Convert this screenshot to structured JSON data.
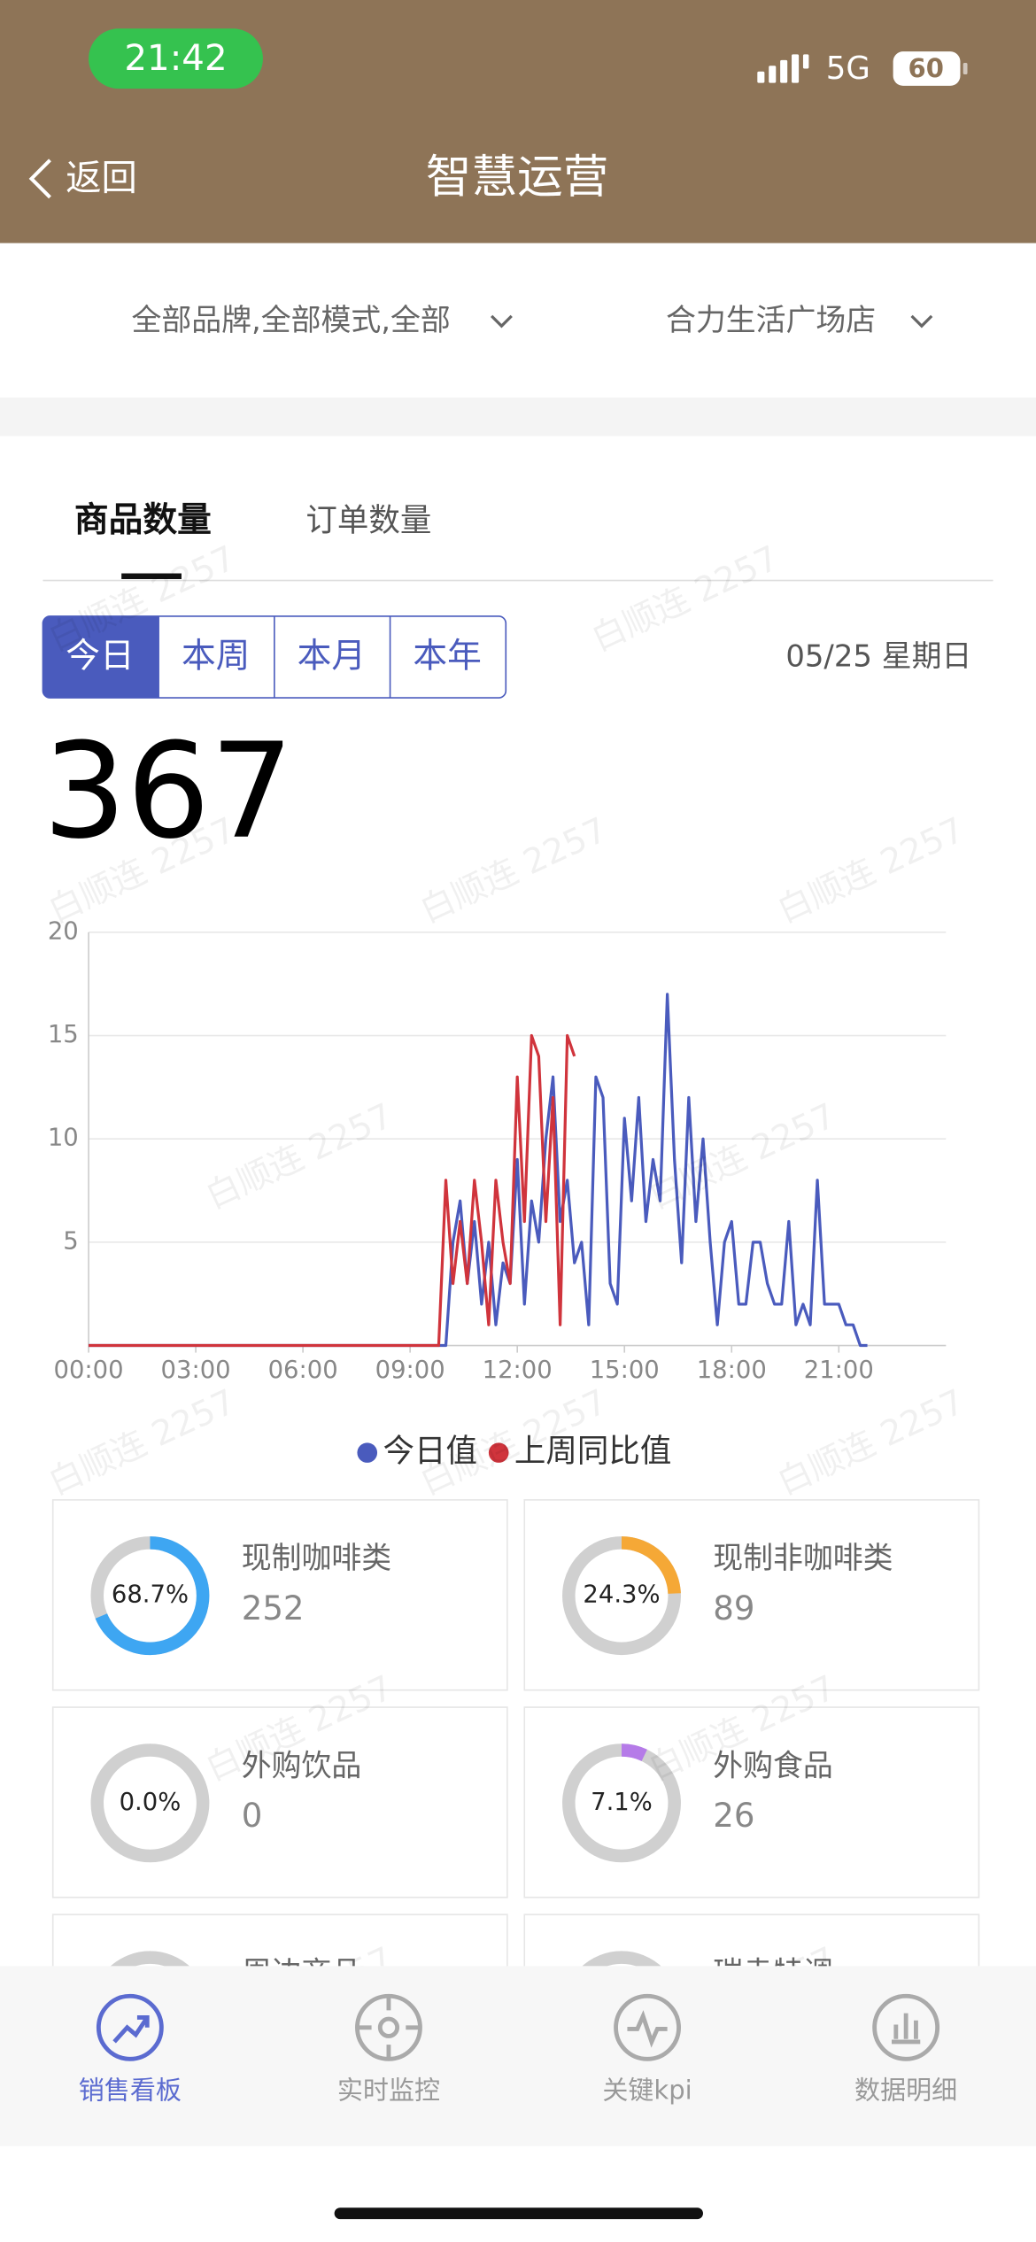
{
  "status_bar": {
    "time": "21:42",
    "network": "5G",
    "battery": "60"
  },
  "nav": {
    "back": "返回",
    "title": "智慧运营"
  },
  "filters": [
    "全部品牌,全部模式,全部",
    "合力生活广场店"
  ],
  "tabs": [
    "商品数量",
    "订单数量"
  ],
  "periods": [
    "今日",
    "本周",
    "本月",
    "本年"
  ],
  "date": "05/25 星期日",
  "total": 367,
  "watermark": "白顺连 2257",
  "chart_data": {
    "type": "line",
    "x": [
      0,
      9.8,
      10.0,
      10.2,
      10.4,
      10.6,
      10.8,
      11.0,
      11.2,
      11.4,
      11.6,
      11.8,
      12.0,
      12.2,
      12.4,
      12.6,
      12.8,
      13.0,
      13.2,
      13.4,
      13.6,
      13.8,
      14.0,
      14.2,
      14.4,
      14.6,
      14.8,
      15.0,
      15.2,
      15.4,
      15.6,
      15.8,
      16.0,
      16.2,
      16.4,
      16.6,
      16.8,
      17.0,
      17.2,
      17.4,
      17.6,
      17.8,
      18.0,
      18.2,
      18.4,
      18.6,
      18.8,
      19.0,
      19.2,
      19.4,
      19.6,
      19.8,
      20.0,
      20.2,
      20.4,
      20.6,
      20.8,
      21.0,
      21.2,
      21.4,
      21.6,
      21.8
    ],
    "xlim": [
      0,
      24
    ],
    "xticks": [
      {
        "value": 0,
        "label": "00:00"
      },
      {
        "value": 3,
        "label": "03:00"
      },
      {
        "value": 6,
        "label": "06:00"
      },
      {
        "value": 9,
        "label": "09:00"
      },
      {
        "value": 12,
        "label": "12:00"
      },
      {
        "value": 15,
        "label": "15:00"
      },
      {
        "value": 18,
        "label": "18:00"
      },
      {
        "value": 21,
        "label": "21:00"
      }
    ],
    "ylim": [
      0,
      20
    ],
    "yticks": [
      5,
      10,
      15,
      20
    ],
    "grid": true,
    "series": [
      {
        "name": "今日值",
        "color": "#4a5bbd",
        "values": [
          0,
          0,
          0,
          5,
          7,
          3,
          6,
          2,
          5,
          1,
          4,
          3,
          9,
          2,
          7,
          5,
          10,
          13,
          6,
          8,
          4,
          5,
          1,
          13,
          12,
          3,
          2,
          11,
          7,
          12,
          6,
          9,
          7,
          17,
          9,
          4,
          12,
          6,
          10,
          5,
          1,
          5,
          6,
          2,
          2,
          5,
          5,
          3,
          2,
          2,
          6,
          1,
          2,
          1,
          8,
          2,
          2,
          2,
          1,
          1,
          0,
          0
        ]
      },
      {
        "name": "上周同比值",
        "color": "#d0343c",
        "values": [
          0,
          0,
          8,
          3,
          6,
          3,
          8,
          5,
          1,
          8,
          5,
          3,
          13,
          6,
          15,
          14,
          6,
          12,
          1,
          15,
          14,
          null,
          null,
          null,
          null,
          null,
          null,
          null,
          null,
          null,
          null,
          null,
          null,
          null,
          null,
          null,
          null,
          null,
          null,
          null,
          null,
          null,
          null,
          null,
          null,
          null,
          null,
          null,
          null,
          null,
          null,
          null,
          null,
          null,
          null,
          null,
          null,
          null,
          null,
          null,
          null,
          null
        ]
      }
    ]
  },
  "cards": [
    {
      "name": "现制咖啡类",
      "value": 252,
      "percent": 68.7,
      "percent_label": "68.7%",
      "color": "#3ea6f2"
    },
    {
      "name": "现制非咖啡类",
      "value": 89,
      "percent": 24.3,
      "percent_label": "24.3%",
      "color": "#f5a836"
    },
    {
      "name": "外购饮品",
      "value": 0,
      "percent": 0,
      "percent_label": "0.0%",
      "color": "#9a6be0"
    },
    {
      "name": "外购食品",
      "value": 26,
      "percent": 7.1,
      "percent_label": "7.1%",
      "color": "#b57be8"
    },
    {
      "name": "周边商品"
    },
    {
      "name": "瑞幸特调"
    }
  ],
  "bottom_nav": [
    "销售看板",
    "实时监控",
    "关键kpi",
    "数据明细"
  ]
}
